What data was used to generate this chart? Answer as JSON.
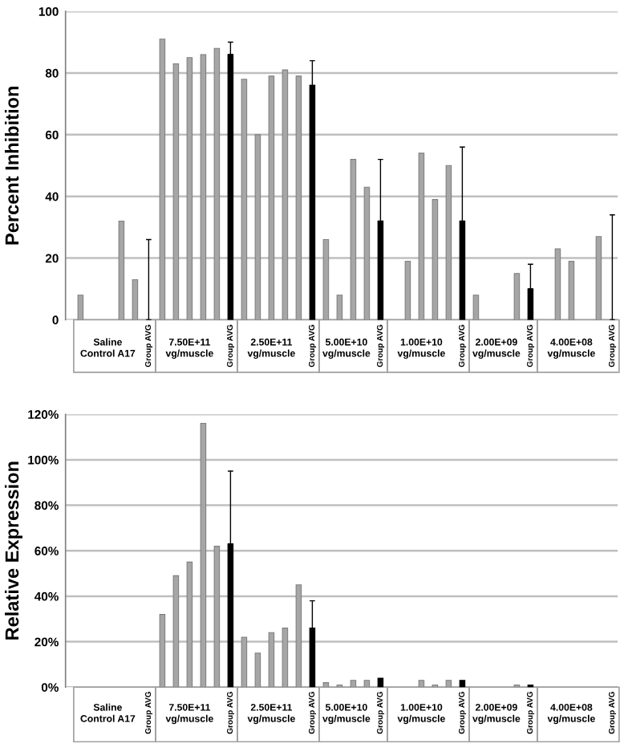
{
  "chart_data": [
    {
      "type": "bar",
      "ylabel": "Percent Inhibition",
      "categories": [
        null,
        null,
        null,
        null,
        null,
        "Group AVG",
        null,
        null,
        null,
        null,
        null,
        "Group AVG",
        null,
        null,
        null,
        null,
        null,
        "Group AVG",
        null,
        null,
        null,
        null,
        "Group AVG",
        null,
        null,
        null,
        null,
        null,
        "Group AVG",
        null,
        null,
        null,
        null,
        "Group AVG",
        null,
        null,
        null,
        null,
        null,
        "Group AVG"
      ],
      "values": [
        8,
        null,
        null,
        32,
        13,
        0,
        91,
        83,
        85,
        86,
        88,
        86,
        78,
        60,
        79,
        81,
        79,
        76,
        26,
        8,
        52,
        43,
        32,
        null,
        19,
        54,
        39,
        50,
        32,
        8,
        null,
        null,
        15,
        10,
        null,
        23,
        19,
        null,
        27,
        0
      ],
      "errors": [
        null,
        null,
        null,
        null,
        null,
        [
          0,
          26
        ],
        null,
        null,
        null,
        null,
        null,
        [
          86,
          90
        ],
        null,
        null,
        null,
        null,
        null,
        [
          76,
          84
        ],
        null,
        null,
        null,
        null,
        [
          32,
          52
        ],
        null,
        null,
        null,
        null,
        null,
        [
          32,
          56
        ],
        null,
        null,
        null,
        null,
        [
          10,
          18
        ],
        null,
        null,
        null,
        null,
        null,
        [
          0,
          34
        ]
      ],
      "colors": [
        "#a6a6a6",
        "#a6a6a6",
        "#a6a6a6",
        "#a6a6a6",
        "#a6a6a6",
        "#000000",
        "#a6a6a6",
        "#a6a6a6",
        "#a6a6a6",
        "#a6a6a6",
        "#a6a6a6",
        "#000000",
        "#a6a6a6",
        "#a6a6a6",
        "#a6a6a6",
        "#a6a6a6",
        "#a6a6a6",
        "#000000",
        "#a6a6a6",
        "#a6a6a6",
        "#a6a6a6",
        "#a6a6a6",
        "#000000",
        "#a6a6a6",
        "#a6a6a6",
        "#a6a6a6",
        "#a6a6a6",
        "#a6a6a6",
        "#000000",
        "#a6a6a6",
        "#a6a6a6",
        "#a6a6a6",
        "#a6a6a6",
        "#000000",
        "#a6a6a6",
        "#a6a6a6",
        "#a6a6a6",
        "#a6a6a6",
        "#a6a6a6",
        "#000000"
      ],
      "annotations": [
        "Saline\nControl A17",
        "7.50E+11\nvg/muscle",
        "2.50E+11\nvg/muscle",
        "5.00E+10\nvg/muscle",
        "1.00E+10\nvg/muscle",
        "2.00E+09\nvg/muscle",
        "4.00E+08\nvg/muscle"
      ],
      "ylim": [
        0,
        100
      ],
      "yticks": [
        0,
        20,
        40,
        60,
        80,
        100
      ],
      "grid": "y",
      "legend": false
    },
    {
      "type": "bar",
      "ylabel": "Relative Expression",
      "categories": [
        null,
        null,
        null,
        null,
        null,
        "Group AVG",
        null,
        null,
        null,
        null,
        null,
        "Group AVG",
        null,
        null,
        null,
        null,
        null,
        "Group AVG",
        null,
        null,
        null,
        null,
        "Group AVG",
        null,
        null,
        null,
        null,
        null,
        "Group AVG",
        null,
        null,
        null,
        null,
        "Group AVG",
        null,
        null,
        null,
        null,
        null,
        "Group AVG"
      ],
      "values": [
        null,
        null,
        null,
        null,
        null,
        null,
        32,
        49,
        55,
        116,
        62,
        63,
        22,
        15,
        24,
        26,
        45,
        26,
        2,
        1,
        3,
        3,
        4,
        null,
        null,
        3,
        1,
        3,
        3,
        null,
        null,
        null,
        1,
        1,
        null,
        null,
        null,
        null,
        null,
        null
      ],
      "errors": [
        null,
        null,
        null,
        null,
        null,
        null,
        null,
        null,
        null,
        null,
        null,
        [
          63,
          95
        ],
        null,
        null,
        null,
        null,
        null,
        [
          26,
          38
        ],
        null,
        null,
        null,
        null,
        null,
        null,
        null,
        null,
        null,
        null,
        null,
        null,
        null,
        null,
        null,
        null,
        null,
        null,
        null,
        null,
        null,
        null
      ],
      "colors": [
        "#a6a6a6",
        "#a6a6a6",
        "#a6a6a6",
        "#a6a6a6",
        "#a6a6a6",
        "#000000",
        "#a6a6a6",
        "#a6a6a6",
        "#a6a6a6",
        "#a6a6a6",
        "#a6a6a6",
        "#000000",
        "#a6a6a6",
        "#a6a6a6",
        "#a6a6a6",
        "#a6a6a6",
        "#a6a6a6",
        "#000000",
        "#a6a6a6",
        "#a6a6a6",
        "#a6a6a6",
        "#a6a6a6",
        "#000000",
        "#a6a6a6",
        "#a6a6a6",
        "#a6a6a6",
        "#a6a6a6",
        "#a6a6a6",
        "#000000",
        "#a6a6a6",
        "#a6a6a6",
        "#a6a6a6",
        "#a6a6a6",
        "#000000",
        "#a6a6a6",
        "#a6a6a6",
        "#a6a6a6",
        "#a6a6a6",
        "#a6a6a6",
        "#000000"
      ],
      "annotations": [
        "Saline\nControl A17",
        "7.50E+11\nvg/muscle",
        "2.50E+11\nvg/muscle",
        "5.00E+10\nvg/muscle",
        "1.00E+10\nvg/muscle",
        "2.00E+09\nvg/muscle",
        "4.00E+08\nvg/muscle"
      ],
      "ylim": [
        0,
        120
      ],
      "yticks": [
        {
          "value": 0,
          "label": "0%"
        },
        {
          "value": 20,
          "label": "20%"
        },
        {
          "value": 40,
          "label": "40%"
        },
        {
          "value": 60,
          "label": "60%"
        },
        {
          "value": 80,
          "label": "80%"
        },
        {
          "value": 100,
          "label": "100%"
        },
        {
          "value": 120,
          "label": "120%"
        }
      ],
      "grid": "y",
      "legend": false
    }
  ]
}
